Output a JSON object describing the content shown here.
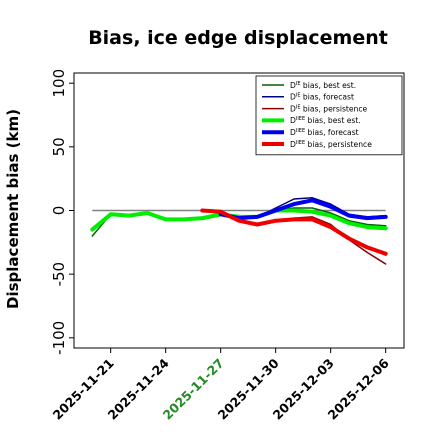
{
  "chart_data": {
    "type": "line",
    "title": "Bias, ice edge displacement",
    "ylabel": "Displacement bias (km)",
    "xlabel": "",
    "ylim": [
      -108,
      108
    ],
    "xlim": [
      "2025-11-19",
      "2025-12-07"
    ],
    "yticks": [
      -100,
      -50,
      0,
      50,
      100
    ],
    "xticks": [
      {
        "date": "2025-11-21",
        "label": "2025-11-21",
        "color": "#000000"
      },
      {
        "date": "2025-11-24",
        "label": "2025-11-24",
        "color": "#000000"
      },
      {
        "date": "2025-11-27",
        "label": "2025-11-27",
        "color": "#228B22"
      },
      {
        "date": "2025-11-30",
        "label": "2025-11-30",
        "color": "#000000"
      },
      {
        "date": "2025-12-03",
        "label": "2025-12-03",
        "color": "#000000"
      },
      {
        "date": "2025-12-06",
        "label": "2025-12-06",
        "color": "#000000"
      }
    ],
    "reference_line": 0,
    "legend_position": "top-right",
    "series": [
      {
        "key": "de_best",
        "sym": "D",
        "sup": "IE",
        "desc": " bias, best est.",
        "color": "#006400",
        "width": 1.5,
        "x": [
          "2025-11-20",
          "2025-11-21",
          "2025-11-22",
          "2025-11-23",
          "2025-11-24",
          "2025-11-25",
          "2025-11-26",
          "2025-11-27",
          "2025-11-28",
          "2025-11-29",
          "2025-11-30",
          "2025-12-01",
          "2025-12-02",
          "2025-12-03",
          "2025-12-04",
          "2025-12-05",
          "2025-12-06"
        ],
        "y": [
          -20,
          -3,
          -4,
          -2,
          -7,
          -7,
          -7,
          -4,
          -4,
          -5,
          0,
          2,
          2,
          -2,
          -8,
          -11,
          -12
        ]
      },
      {
        "key": "de_fcst",
        "sym": "D",
        "sup": "IE",
        "desc": " bias, forecast",
        "color": "#00008B",
        "width": 1.5,
        "x": [
          "2025-11-27",
          "2025-11-28",
          "2025-11-29",
          "2025-11-30",
          "2025-12-01",
          "2025-12-02",
          "2025-12-03",
          "2025-12-04",
          "2025-12-05",
          "2025-12-06"
        ],
        "y": [
          -2,
          -5,
          -5,
          2,
          9,
          10,
          5,
          -3,
          -5,
          -4
        ]
      },
      {
        "key": "de_pers",
        "sym": "D",
        "sup": "IE",
        "desc": " bias, persistence",
        "color": "#8B0000",
        "width": 1.5,
        "x": [
          "2025-11-26",
          "2025-11-27",
          "2025-11-28",
          "2025-11-29",
          "2025-11-30",
          "2025-12-01",
          "2025-12-02",
          "2025-12-03",
          "2025-12-04",
          "2025-12-05",
          "2025-12-06"
        ],
        "y": [
          0,
          0,
          -8,
          -11,
          -8,
          -6,
          -5,
          -11,
          -23,
          -33,
          -42
        ]
      },
      {
        "key": "diie_best",
        "sym": "D",
        "sup": "IIEE",
        "desc": " bias, best est.",
        "color": "#00EE00",
        "width": 4,
        "x": [
          "2025-11-20",
          "2025-11-21",
          "2025-11-22",
          "2025-11-23",
          "2025-11-24",
          "2025-11-25",
          "2025-11-26",
          "2025-11-27",
          "2025-11-28",
          "2025-11-29",
          "2025-11-30",
          "2025-12-01",
          "2025-12-02",
          "2025-12-03",
          "2025-12-04",
          "2025-12-05",
          "2025-12-06"
        ],
        "y": [
          -15,
          -3,
          -4,
          -2,
          -7,
          -7,
          -6,
          -3,
          -5,
          -5,
          0,
          0,
          -1,
          -4,
          -10,
          -13,
          -14
        ]
      },
      {
        "key": "diie_fcst",
        "sym": "D",
        "sup": "IIEE",
        "desc": " bias, forecast",
        "color": "#0000EE",
        "width": 4,
        "x": [
          "2025-11-27",
          "2025-11-28",
          "2025-11-29",
          "2025-11-30",
          "2025-12-01",
          "2025-12-02",
          "2025-12-03",
          "2025-12-04",
          "2025-12-05",
          "2025-12-06"
        ],
        "y": [
          -3,
          -6,
          -5,
          0,
          5,
          8,
          3,
          -4,
          -6,
          -5
        ]
      },
      {
        "key": "diie_pers",
        "sym": "D",
        "sup": "IIEE",
        "desc": " bias, persistence",
        "color": "#EE0000",
        "width": 4,
        "x": [
          "2025-11-26",
          "2025-11-27",
          "2025-11-28",
          "2025-11-29",
          "2025-11-30",
          "2025-12-01",
          "2025-12-02",
          "2025-12-03",
          "2025-12-04",
          "2025-12-05",
          "2025-12-06"
        ],
        "y": [
          0,
          -1,
          -8,
          -11,
          -8,
          -7,
          -7,
          -13,
          -22,
          -29,
          -34
        ]
      }
    ]
  }
}
